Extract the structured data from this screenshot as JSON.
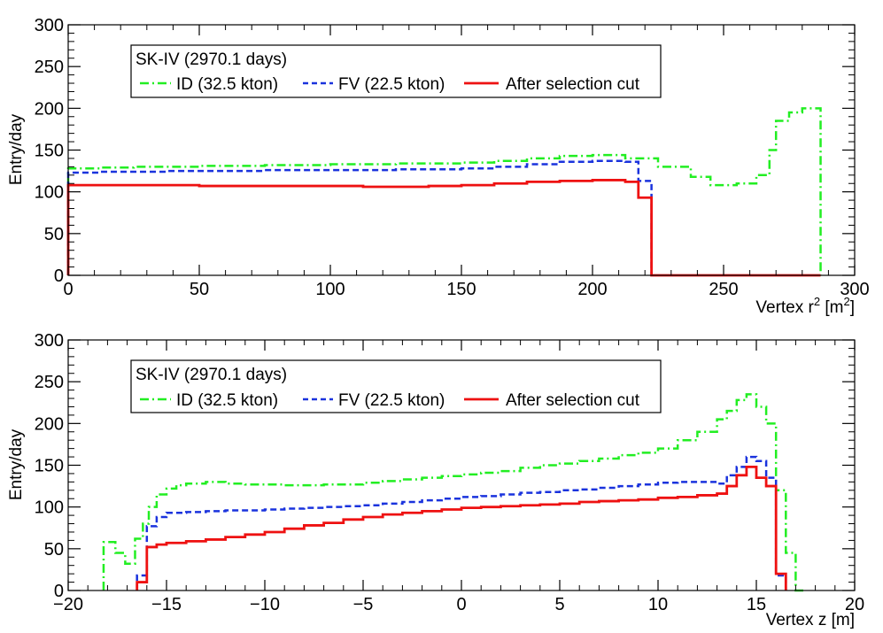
{
  "figure": {
    "background": "#ffffff"
  },
  "chart_data": [
    {
      "type": "line",
      "step": true,
      "title": "",
      "xlabel": "Vertex r",
      "xlabel_sup": "2",
      "xlabel_unit_open": "[m",
      "xlabel_unit_sup": "2",
      "xlabel_unit_close": "]",
      "ylabel": "Entry/day",
      "xlim": [
        0,
        300
      ],
      "ylim": [
        0,
        300
      ],
      "xticks": [
        0,
        50,
        100,
        150,
        200,
        250,
        300
      ],
      "xtick_labels": [
        "0",
        "50",
        "100",
        "150",
        "200",
        "250",
        "300"
      ],
      "yticks": [
        0,
        50,
        100,
        150,
        200,
        250,
        300
      ],
      "ytick_labels": [
        "0",
        "50",
        "100",
        "150",
        "200",
        "250",
        "300"
      ],
      "legend": {
        "placement": "top-left",
        "header": "SK-IV (2970.1 days)",
        "entries": [
          "ID (32.5 kton)",
          "FV (22.5 kton)",
          "After selection cut"
        ]
      },
      "series": [
        {
          "name": "ID (32.5 kton)",
          "color": "#22ee22",
          "dash": "dashdot",
          "edges": [
            0,
            12.5,
            25,
            37.5,
            50,
            62.5,
            75,
            87.5,
            100,
            112.5,
            125,
            137.5,
            150,
            162.5,
            175,
            187.5,
            200,
            212.5,
            225,
            237.5,
            245,
            255,
            262.5,
            267.5,
            270,
            275,
            280,
            287
          ],
          "values": [
            128,
            129,
            130,
            130,
            131,
            131,
            132,
            132,
            133,
            133,
            134,
            134,
            135,
            137,
            140,
            143,
            144,
            140,
            130,
            118,
            108,
            110,
            120,
            150,
            185,
            195,
            200
          ]
        },
        {
          "name": "FV (22.5 kton)",
          "color": "#1a33dd",
          "dash": "dash",
          "edges": [
            0,
            12.5,
            25,
            37.5,
            50,
            62.5,
            75,
            87.5,
            100,
            112.5,
            125,
            137.5,
            150,
            162.5,
            175,
            187.5,
            200,
            212.5,
            217.5,
            222.5
          ],
          "values": [
            123,
            124,
            124,
            125,
            125,
            125,
            126,
            126,
            126,
            126,
            127,
            127,
            128,
            130,
            133,
            136,
            137,
            136,
            113
          ]
        },
        {
          "name": "After selection cut",
          "color": "#ee1111",
          "dash": "solid",
          "edges": [
            0,
            12.5,
            25,
            37.5,
            50,
            62.5,
            75,
            87.5,
            100,
            112.5,
            125,
            137.5,
            150,
            162.5,
            175,
            187.5,
            200,
            212.5,
            217.5,
            222.5,
            287
          ],
          "values": [
            108,
            108,
            108,
            108,
            107,
            107,
            107,
            107,
            107,
            106,
            106,
            107,
            108,
            110,
            112,
            113,
            114,
            112,
            93,
            0
          ]
        }
      ]
    },
    {
      "type": "line",
      "step": true,
      "title": "",
      "xlabel": "Vertex z [m]",
      "ylabel": "Entry/day",
      "xlim": [
        -20,
        20
      ],
      "ylim": [
        0,
        300
      ],
      "xticks": [
        -20,
        -15,
        -10,
        -5,
        0,
        5,
        10,
        15,
        20
      ],
      "xtick_labels": [
        "−20",
        "−15",
        "−10",
        "−5",
        "0",
        "5",
        "10",
        "15",
        "20"
      ],
      "yticks": [
        0,
        50,
        100,
        150,
        200,
        250,
        300
      ],
      "ytick_labels": [
        "0",
        "50",
        "100",
        "150",
        "200",
        "250",
        "300"
      ],
      "legend": {
        "placement": "top-left",
        "header": "SK-IV (2970.1 days)",
        "entries": [
          "ID (32.5 kton)",
          "FV (22.5 kton)",
          "After selection cut"
        ]
      },
      "series": [
        {
          "name": "ID (32.5 kton)",
          "color": "#22ee22",
          "dash": "dashdot",
          "edges": [
            -18.2,
            -17.6,
            -17.1,
            -16.6,
            -16.2,
            -15.9,
            -15.5,
            -15,
            -14.5,
            -14,
            -13,
            -12,
            -11,
            -10,
            -9,
            -8,
            -7,
            -6,
            -5,
            -4,
            -3,
            -2,
            -1,
            0,
            1,
            2,
            3,
            4,
            5,
            6,
            7,
            8,
            9,
            10,
            11,
            12,
            13,
            13.5,
            14,
            14.5,
            15,
            15.5,
            16,
            16.5,
            17,
            17.5
          ],
          "values": [
            58,
            45,
            32,
            62,
            80,
            100,
            115,
            122,
            126,
            128,
            130,
            128,
            127,
            127,
            126,
            126,
            127,
            127,
            129,
            131,
            133,
            135,
            137,
            139,
            141,
            143,
            147,
            150,
            152,
            155,
            158,
            162,
            165,
            170,
            180,
            190,
            205,
            215,
            228,
            235,
            220,
            200,
            120,
            45,
            0
          ]
        },
        {
          "name": "FV (22.5 kton)",
          "color": "#1a33dd",
          "dash": "dash",
          "edges": [
            -16.5,
            -16,
            -15.5,
            -15,
            -14,
            -13,
            -12,
            -11,
            -10,
            -9,
            -8,
            -7,
            -6,
            -5,
            -4,
            -3,
            -2,
            -1,
            0,
            1,
            2,
            3,
            4,
            5,
            6,
            7,
            8,
            9,
            10,
            11,
            12,
            13,
            13.5,
            14,
            14.5,
            15,
            15.5,
            16,
            16.5
          ],
          "values": [
            18,
            77,
            88,
            93,
            94,
            95,
            96,
            96,
            97,
            98,
            99,
            100,
            101,
            102,
            104,
            106,
            108,
            110,
            112,
            113,
            115,
            117,
            118,
            120,
            121,
            123,
            125,
            127,
            129,
            130,
            130,
            128,
            138,
            148,
            160,
            155,
            135,
            18
          ]
        },
        {
          "name": "After selection cut",
          "color": "#ee1111",
          "dash": "solid",
          "edges": [
            -16.5,
            -16,
            -15.5,
            -15,
            -14,
            -13,
            -12,
            -11,
            -10,
            -9,
            -8,
            -7,
            -6,
            -5,
            -4,
            -3,
            -2,
            -1,
            0,
            1,
            2,
            3,
            4,
            5,
            6,
            7,
            8,
            9,
            10,
            11,
            12,
            13,
            13.5,
            14,
            14.5,
            15,
            15.5,
            16,
            16.5
          ],
          "values": [
            10,
            52,
            55,
            57,
            59,
            61,
            64,
            67,
            70,
            74,
            78,
            81,
            85,
            88,
            91,
            93,
            95,
            97,
            99,
            100,
            101,
            102,
            103,
            104,
            106,
            107,
            108,
            109,
            111,
            112,
            114,
            116,
            125,
            138,
            148,
            135,
            125,
            20
          ]
        }
      ]
    }
  ]
}
